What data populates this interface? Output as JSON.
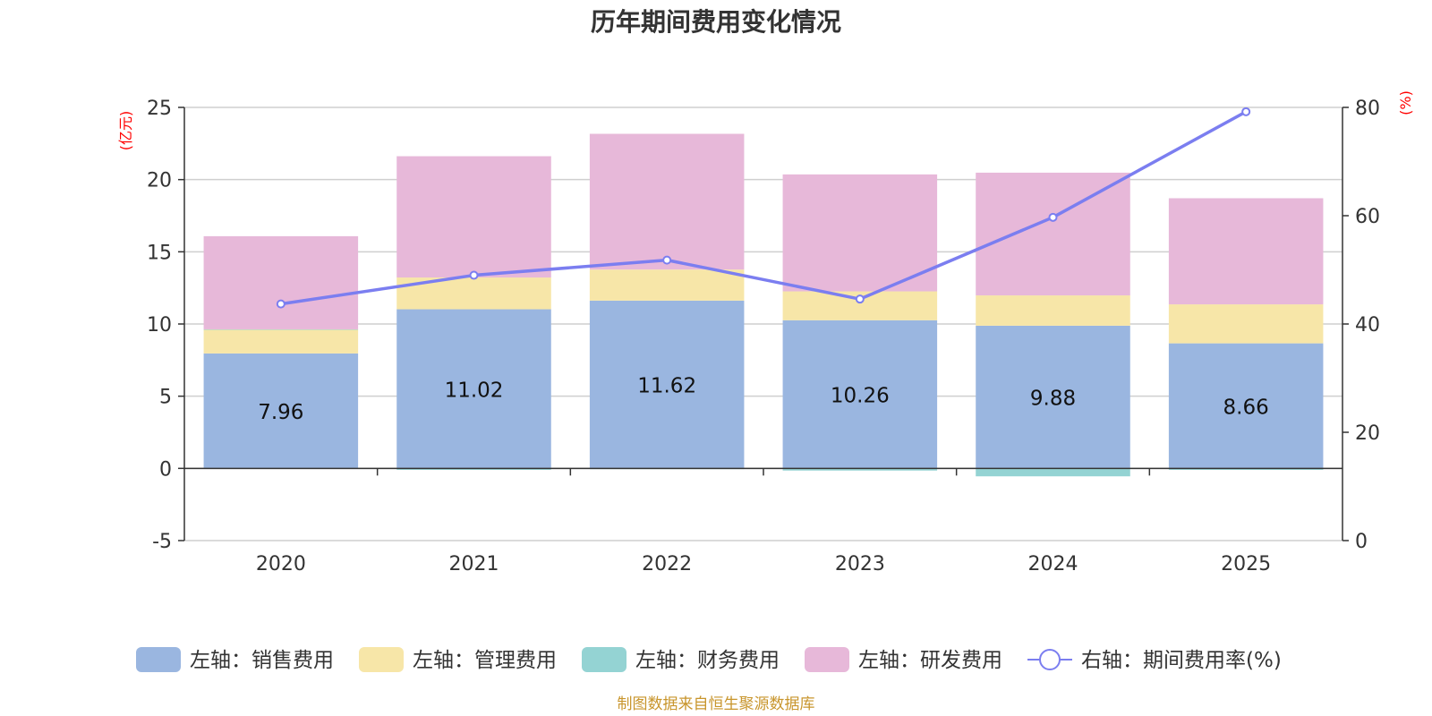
{
  "chart_data": {
    "type": "bar",
    "stacked": true,
    "title": "历年期间费用变化情况",
    "categories": [
      "2020",
      "2021",
      "2022",
      "2023",
      "2024",
      "2025"
    ],
    "left_axis": {
      "unit_label": "(亿元)",
      "ylim": [
        -5,
        25
      ],
      "ticks": [
        -5,
        0,
        5,
        10,
        15,
        20,
        25
      ]
    },
    "right_axis": {
      "unit_label": "(%)",
      "ylim": [
        0,
        80
      ],
      "ticks": [
        0,
        20,
        40,
        60,
        80
      ]
    },
    "series": [
      {
        "name": "左轴：销售费用",
        "axis": "left",
        "type": "bar",
        "color": "#9ab6e0",
        "values": [
          7.96,
          11.02,
          11.62,
          10.26,
          9.88,
          8.66
        ],
        "labels": [
          "7.96",
          "11.02",
          "11.62",
          "10.26",
          "9.88",
          "8.66"
        ]
      },
      {
        "name": "左轴：管理费用",
        "axis": "left",
        "type": "bar",
        "color": "#f7e6a8",
        "values": [
          1.65,
          2.2,
          2.15,
          2.0,
          2.1,
          2.7
        ]
      },
      {
        "name": "左轴：财务费用",
        "axis": "left",
        "type": "bar",
        "color": "#94d3d3",
        "values": [
          0.02,
          -0.1,
          -0.05,
          -0.15,
          -0.55,
          -0.1
        ]
      },
      {
        "name": "左轴：研发费用",
        "axis": "left",
        "type": "bar",
        "color": "#e7b8d9",
        "values": [
          6.45,
          8.4,
          9.4,
          8.1,
          8.5,
          7.35
        ]
      },
      {
        "name": "右轴：期间费用率(%)",
        "axis": "right",
        "type": "line",
        "color": "#7b7ef0",
        "values": [
          43.7,
          49.0,
          51.8,
          44.6,
          59.7,
          79.2
        ]
      }
    ],
    "legend_position": "bottom",
    "grid": true
  },
  "source_text": "制图数据来自恒生聚源数据库"
}
